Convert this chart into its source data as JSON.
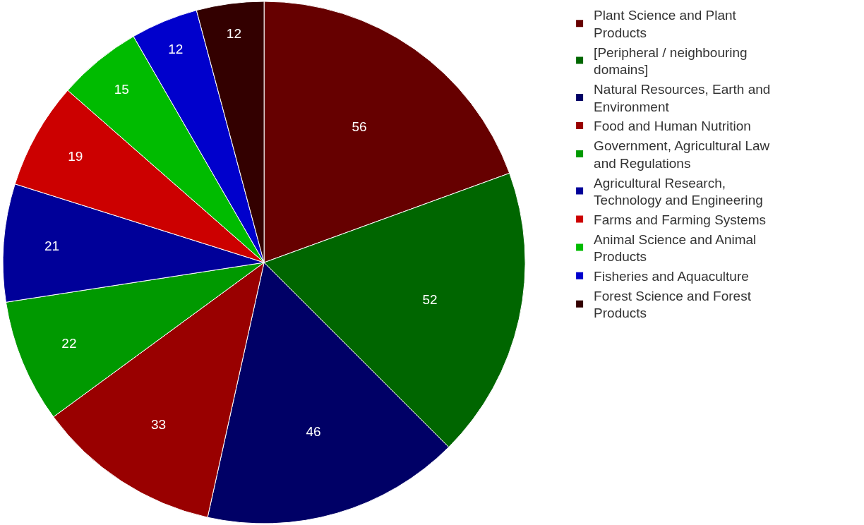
{
  "chart_data": {
    "type": "pie",
    "categories": [
      "Plant Science and Plant Products",
      "[Peripheral / neighbouring domains]",
      "Natural Resources, Earth and Environment",
      "Food and Human Nutrition",
      "Government, Agricultural Law and Regulations",
      "Agricultural Research, Technology and Engineering",
      "Farms and Farming Systems",
      "Animal Science and Animal Products",
      "Fisheries and Aquaculture",
      "Forest Science and Forest Products"
    ],
    "values": [
      56,
      52,
      46,
      33,
      22,
      21,
      19,
      15,
      12,
      12
    ],
    "colors": [
      "#660000",
      "#006600",
      "#000066",
      "#990000",
      "#009900",
      "#000099",
      "#cc0000",
      "#00bb00",
      "#0000cc",
      "#330000"
    ],
    "data_labels": true,
    "legend": "right"
  }
}
